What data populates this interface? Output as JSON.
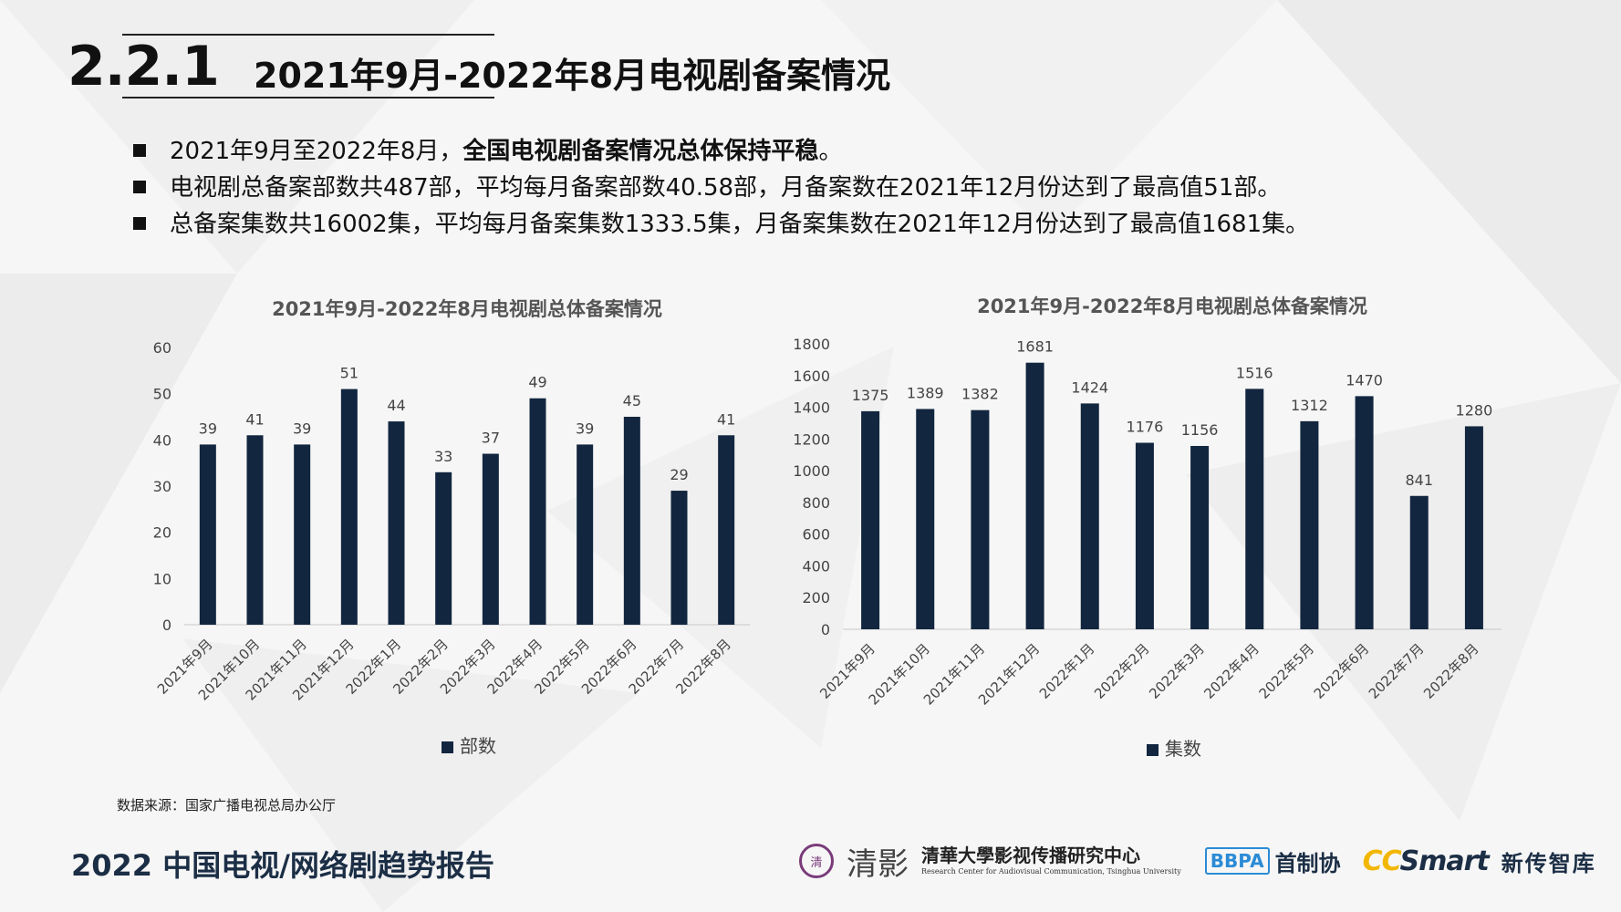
{
  "header": {
    "section_number": "2.2.1",
    "title": "2021年9月-2022年8月电视剧备案情况"
  },
  "bullets": [
    {
      "plain": "2021年9月至2022年8月，",
      "bold": "全国电视剧备案情况总体保持平稳",
      "tail": "。"
    },
    {
      "plain": "电视剧总备案部数共487部，平均每月备案部数40.58部，月备案数在2021年12月份达到了最高值51部。",
      "bold": "",
      "tail": ""
    },
    {
      "plain": "总备案集数共16002集，平均每月备案集数1333.5集，月备案集数在2021年12月份达到了最高值1681集。",
      "bold": "",
      "tail": ""
    }
  ],
  "chart_data": [
    {
      "type": "bar",
      "title": "2021年9月-2022年8月电视剧总体备案情况",
      "categories": [
        "2021年9月",
        "2021年10月",
        "2021年11月",
        "2021年12月",
        "2022年1月",
        "2022年2月",
        "2022年3月",
        "2022年4月",
        "2022年5月",
        "2022年6月",
        "2022年7月",
        "2022年8月"
      ],
      "series": [
        {
          "name": "部数",
          "values": [
            39,
            41,
            39,
            51,
            44,
            33,
            37,
            49,
            39,
            45,
            29,
            41
          ]
        }
      ],
      "ylim": [
        0,
        60
      ],
      "yticks": [
        0,
        10,
        20,
        30,
        40,
        50,
        60
      ],
      "data_labels": true,
      "grid": false,
      "legend": "bottom",
      "bar_color": "#12263f"
    },
    {
      "type": "bar",
      "title": "2021年9月-2022年8月电视剧总体备案情况",
      "categories": [
        "2021年9月",
        "2021年10月",
        "2021年11月",
        "2021年12月",
        "2022年1月",
        "2022年2月",
        "2022年3月",
        "2022年4月",
        "2022年5月",
        "2022年6月",
        "2022年7月",
        "2022年8月"
      ],
      "series": [
        {
          "name": "集数",
          "values": [
            1375,
            1389,
            1382,
            1681,
            1424,
            1176,
            1156,
            1516,
            1312,
            1470,
            841,
            1280
          ]
        }
      ],
      "ylim": [
        0,
        1800
      ],
      "yticks": [
        0,
        200,
        400,
        600,
        800,
        1000,
        1200,
        1400,
        1600,
        1800
      ],
      "data_labels": true,
      "grid": false,
      "legend": "bottom",
      "bar_color": "#12263f"
    }
  ],
  "footer": {
    "source": "数据来源：国家广播电视总局办公厅",
    "report_title": "2022 中国电视/网络剧趋势报告",
    "logos": {
      "seal_text": "清",
      "qing_text": "清影",
      "tsinghua_cn": "清華大學影视传播研究中心",
      "tsinghua_en": "Research Center for Audiovisual Communication, Tsinghua University",
      "bbpa_en": "BBPA",
      "bbpa_cn": "首制协",
      "ccsmart_cc": "CC",
      "ccsmart_rest": "Smart",
      "ccsmart_cn": "新传智库"
    }
  }
}
